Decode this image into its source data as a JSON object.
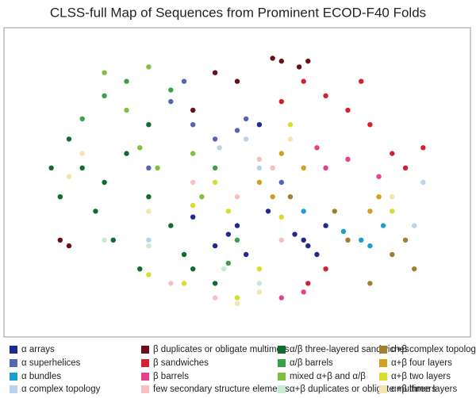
{
  "chart_data": {
    "type": "scatter",
    "title": "CLSS-full Map of Sequences from Prominent ECOD-F40 Folds",
    "xlim": [
      0,
      100
    ],
    "ylim": [
      0,
      100
    ],
    "series": [
      {
        "name": "α arrays",
        "color": "#1f2a8c",
        "x": [
          65,
          66,
          63,
          50,
          52,
          45,
          57,
          40,
          55,
          70,
          68,
          48
        ],
        "y": [
          30,
          28,
          32,
          35,
          25,
          28,
          40,
          38,
          70,
          35,
          25,
          32
        ]
      },
      {
        "name": "β duplicates or obligate multimers",
        "color": "#6b0f1a",
        "x": [
          58,
          60,
          64,
          66,
          45,
          40,
          10,
          12,
          50
        ],
        "y": [
          93,
          92,
          90,
          92,
          88,
          75,
          30,
          28,
          85
        ]
      },
      {
        "name": "α/β three-layered sandwiches",
        "color": "#0f6b2e",
        "x": [
          20,
          15,
          25,
          10,
          18,
          30,
          35,
          22,
          28,
          40,
          8,
          30,
          12,
          45,
          38
        ],
        "y": [
          50,
          55,
          60,
          45,
          40,
          45,
          35,
          30,
          20,
          20,
          55,
          70,
          65,
          15,
          25
        ]
      },
      {
        "name": "α+β complex topology",
        "color": "#a08030",
        "x": [
          85,
          88,
          75,
          62,
          90,
          80,
          72
        ],
        "y": [
          25,
          30,
          30,
          45,
          20,
          15,
          40
        ]
      },
      {
        "name": "α superhelices",
        "color": "#5566b0",
        "x": [
          40,
          45,
          50,
          35,
          30,
          52,
          38,
          60
        ],
        "y": [
          70,
          65,
          68,
          78,
          55,
          72,
          85,
          50
        ]
      },
      {
        "name": "β sandwiches",
        "color": "#d42030",
        "x": [
          70,
          75,
          80,
          85,
          88,
          65,
          78,
          92,
          60,
          70,
          66
        ],
        "y": [
          80,
          75,
          70,
          60,
          55,
          85,
          85,
          62,
          78,
          20,
          15
        ]
      },
      {
        "name": "α/β barrels",
        "color": "#3aa04a",
        "x": [
          50,
          48,
          20,
          25,
          15,
          35,
          45
        ],
        "y": [
          30,
          22,
          80,
          85,
          72,
          82,
          55
        ]
      },
      {
        "name": "α+β four layers",
        "color": "#d0a020",
        "x": [
          80,
          82,
          55,
          60,
          65,
          58
        ],
        "y": [
          40,
          45,
          50,
          60,
          55,
          45
        ]
      },
      {
        "name": "α bundles",
        "color": "#1aa0d0",
        "x": [
          78,
          83,
          80,
          65,
          74
        ],
        "y": [
          30,
          35,
          28,
          40,
          33
        ]
      },
      {
        "name": "β barrels",
        "color": "#e8408a",
        "x": [
          70,
          75,
          82,
          68,
          65,
          60
        ],
        "y": [
          55,
          58,
          52,
          62,
          12,
          10
        ]
      },
      {
        "name": "mixed α+β and α/β",
        "color": "#80c040",
        "x": [
          40,
          28,
          25,
          32,
          42,
          20,
          30
        ],
        "y": [
          60,
          62,
          75,
          55,
          45,
          88,
          90
        ]
      },
      {
        "name": "α+β two layers",
        "color": "#d8dc30",
        "x": [
          45,
          40,
          38,
          55,
          60,
          85,
          30,
          50,
          62,
          48
        ],
        "y": [
          50,
          42,
          15,
          20,
          38,
          40,
          18,
          10,
          70,
          40
        ]
      },
      {
        "name": "α complex topology",
        "color": "#b8d4ec",
        "x": [
          46,
          52,
          30,
          90,
          92,
          55
        ],
        "y": [
          62,
          65,
          30,
          35,
          50,
          55
        ]
      },
      {
        "name": "few secondary structure elements",
        "color": "#f4c0c0",
        "x": [
          55,
          50,
          58,
          45,
          35,
          40,
          60
        ],
        "y": [
          58,
          45,
          55,
          10,
          15,
          50,
          30
        ]
      },
      {
        "name": "α+β duplicates or obligate multimers",
        "color": "#c8ecd0",
        "x": [
          47,
          20,
          30,
          55
        ],
        "y": [
          20,
          30,
          28,
          15
        ]
      },
      {
        "name": "α+β three layers",
        "color": "#f4e4b0",
        "x": [
          15,
          12,
          55,
          50,
          85,
          30,
          62
        ],
        "y": [
          60,
          52,
          12,
          8,
          45,
          40,
          65
        ]
      }
    ]
  }
}
